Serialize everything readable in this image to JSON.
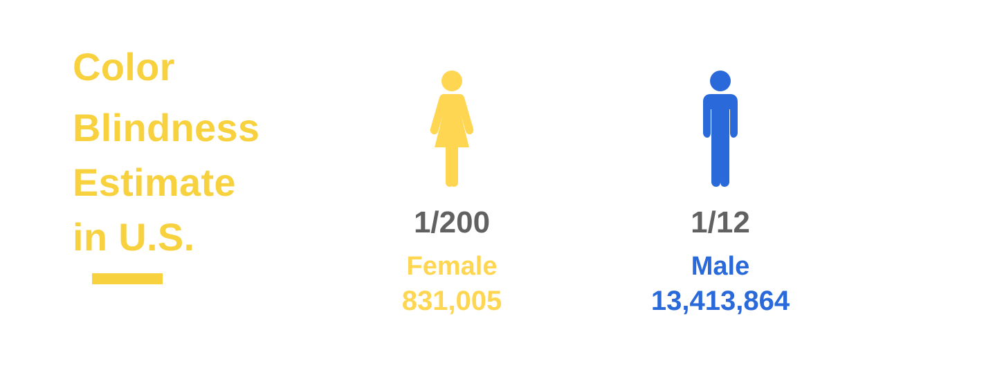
{
  "title": {
    "lines": [
      "Color",
      "Blindness",
      "Estimate",
      "in U.S."
    ]
  },
  "colors": {
    "female": "#fed651",
    "male": "#2a69d9",
    "title": "#f8d13f",
    "ratio_text": "#616161"
  },
  "stats": [
    {
      "icon": "female-person-icon",
      "ratio": "1/200",
      "label": "Female",
      "count": "831,005"
    },
    {
      "icon": "male-person-icon",
      "ratio": "1/12",
      "label": "Male",
      "count": "13,413,864"
    }
  ]
}
